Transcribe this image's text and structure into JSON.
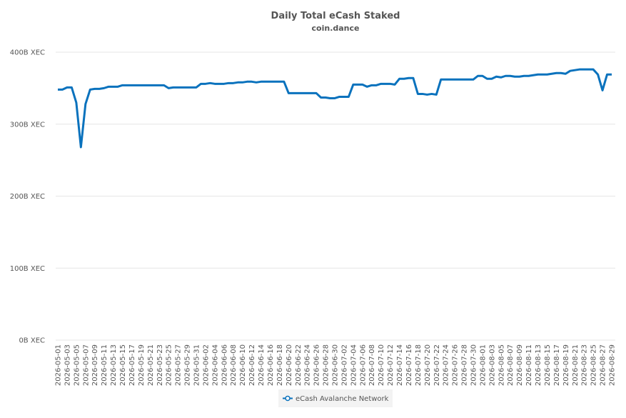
{
  "chart_data": {
    "type": "line",
    "title": "Daily Total eCash Staked",
    "subtitle": "coin.dance",
    "categories": [
      "2026-05-01",
      null,
      "2026-05-03",
      null,
      "2026-05-05",
      null,
      "2026-05-07",
      null,
      "2026-05-09",
      null,
      "2026-05-11",
      null,
      "2026-05-13",
      null,
      "2026-05-15",
      null,
      "2026-05-17",
      null,
      "2026-05-19",
      null,
      "2026-05-21",
      null,
      "2026-05-23",
      null,
      "2026-05-25",
      null,
      "2026-05-27",
      null,
      "2026-05-29",
      null,
      "2026-05-31",
      null,
      "2026-06-02",
      null,
      "2026-06-04",
      null,
      "2026-06-06",
      null,
      "2026-06-08",
      null,
      "2026-06-10",
      null,
      "2026-06-12",
      null,
      "2026-06-14",
      null,
      "2026-06-16",
      null,
      "2026-06-18",
      null,
      "2026-06-20",
      null,
      "2026-06-22",
      null,
      "2026-06-24",
      null,
      "2026-06-26",
      null,
      "2026-06-28",
      null,
      "2026-06-30",
      null,
      "2026-07-02",
      null,
      "2026-07-04",
      null,
      "2026-07-06",
      null,
      "2026-07-08",
      null,
      "2026-07-10",
      null,
      "2026-07-12",
      null,
      "2026-07-14",
      null,
      "2026-07-16",
      null,
      "2026-07-18",
      null,
      "2026-07-20",
      null,
      "2026-07-22",
      null,
      "2026-07-24",
      null,
      "2026-07-26",
      null,
      "2026-07-28",
      null,
      "2026-07-30",
      null,
      "2026-08-01",
      null,
      "2026-08-03",
      null,
      "2026-08-05",
      null,
      "2026-08-07",
      null,
      "2026-08-09",
      null,
      "2026-08-11",
      null,
      "2026-08-13",
      null,
      "2026-08-15",
      null,
      "2026-08-17",
      null,
      "2026-08-19",
      null,
      "2026-08-21",
      null,
      "2026-08-23",
      null,
      "2026-08-25",
      null,
      "2026-08-27",
      null,
      "2026-08-29"
    ],
    "series": [
      {
        "name": "eCash Avalanche Network",
        "color": "#0a72bd",
        "values": [
          348,
          348,
          351,
          351,
          330,
          268,
          328,
          348,
          349,
          349,
          350,
          352,
          352,
          352,
          354,
          354,
          354,
          354,
          354,
          354,
          354,
          354,
          354,
          354,
          350,
          351,
          351,
          351,
          351,
          351,
          351,
          356,
          356,
          357,
          356,
          356,
          356,
          357,
          357,
          358,
          358,
          359,
          359,
          358,
          359,
          359,
          359,
          359,
          359,
          359,
          343,
          343,
          343,
          343,
          343,
          343,
          343,
          337,
          337,
          336,
          336,
          338,
          338,
          338,
          355,
          355,
          355,
          352,
          354,
          354,
          356,
          356,
          356,
          355,
          363,
          363,
          364,
          364,
          342,
          342,
          341,
          342,
          341,
          362,
          362,
          362,
          362,
          362,
          362,
          362,
          362,
          367,
          367,
          363,
          363,
          366,
          365,
          367,
          367,
          366,
          366,
          367,
          367,
          368,
          369,
          369,
          369,
          370,
          371,
          371,
          370,
          374,
          375,
          376,
          376,
          376,
          376,
          369,
          347,
          369,
          369
        ]
      }
    ],
    "ylim": [
      0,
      400
    ],
    "yticks": [
      {
        "value": 0,
        "label": "0B XEC"
      },
      {
        "value": 100,
        "label": "100B XEC"
      },
      {
        "value": 200,
        "label": "200B XEC"
      },
      {
        "value": 300,
        "label": "300B XEC"
      },
      {
        "value": 400,
        "label": "400B XEC"
      }
    ],
    "grid": true
  }
}
